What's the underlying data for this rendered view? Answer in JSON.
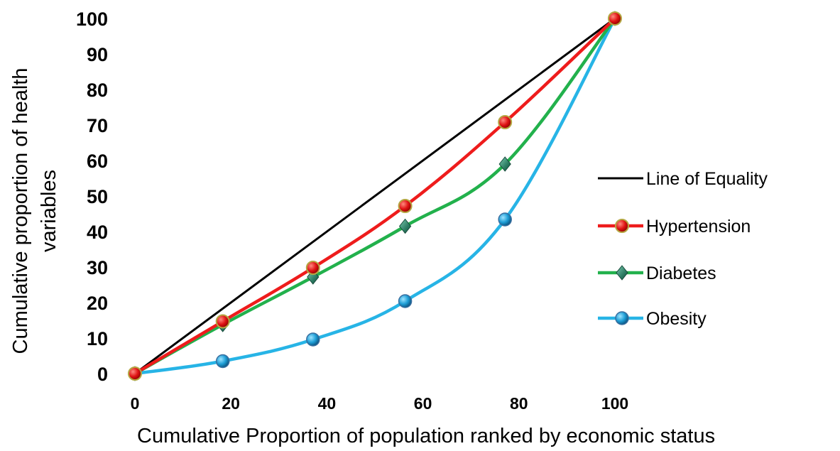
{
  "chart_data": {
    "type": "line",
    "xlabel": "Cumulative Proportion of population ranked by economic status",
    "ylabel": [
      "Cumulative proportion of health",
      "variables"
    ],
    "xlim": [
      0,
      100
    ],
    "ylim": [
      0,
      100
    ],
    "xticks": [
      0,
      20,
      40,
      60,
      80,
      100
    ],
    "yticks": [
      0,
      10,
      20,
      30,
      40,
      50,
      60,
      70,
      80,
      90,
      100
    ],
    "grid": false,
    "legend_position": "right",
    "series": [
      {
        "name": "Line of Equality",
        "color": "#000000",
        "marker": "none",
        "smooth": false,
        "x": [
          0,
          100
        ],
        "y": [
          0,
          100
        ]
      },
      {
        "name": "Hypertension",
        "color": "#ee1c1c",
        "marker": "circle-red",
        "smooth": true,
        "x": [
          0,
          18.3,
          37.1,
          56.3,
          77.1,
          100
        ],
        "y": [
          0,
          14.7,
          29.8,
          47.2,
          70.8,
          100
        ]
      },
      {
        "name": "Diabetes",
        "color": "#22b14c",
        "marker": "diamond-green",
        "smooth": true,
        "x": [
          0,
          18.3,
          37.1,
          56.3,
          77.1,
          100
        ],
        "y": [
          0,
          13.8,
          27.2,
          41.5,
          59.0,
          100
        ]
      },
      {
        "name": "Obesity",
        "color": "#27b4e6",
        "marker": "circle-blue",
        "smooth": true,
        "x": [
          0,
          18.3,
          37.1,
          56.3,
          77.1,
          100
        ],
        "y": [
          0,
          3.5,
          9.6,
          20.4,
          43.4,
          100
        ]
      }
    ]
  }
}
